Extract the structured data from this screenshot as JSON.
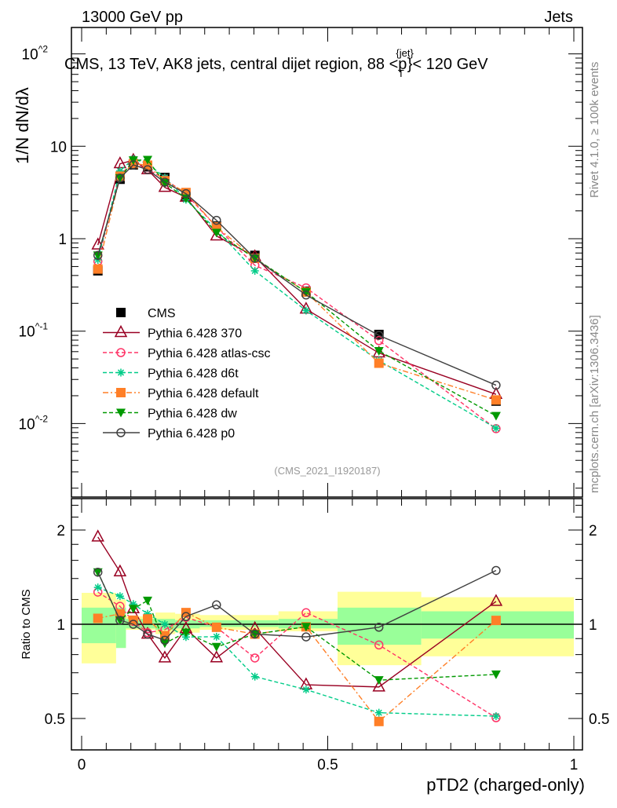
{
  "header": {
    "left": "13000 GeV pp",
    "right": "Jets"
  },
  "side_labels": {
    "rivet": "Rivet 4.1.0, ≥ 100k events",
    "mcplots": "mcplots.cern.ch [arXiv:1306.3436]"
  },
  "chart_data": {
    "type": "line",
    "title": "CMS, 13 TeV, AK8 jets, central dijet region, 88 <p",
    "title_sub": "T",
    "title_sup": "{jet}",
    "title_end": "}< 120 GeV",
    "analysis_id": "(CMS_2021_I1920187)",
    "xlabel": "pTD2 (charged-only)",
    "ylabel": "1/N dN/dλ",
    "ratio_ylabel": "Ratio to CMS",
    "xlim": [
      0,
      1
    ],
    "ylim": [
      0.0016,
      195
    ],
    "yscale": "log",
    "ratio_ylim": [
      0.397,
      2.52
    ],
    "x_ticks": [
      "0",
      "0.5",
      "1"
    ],
    "y_ticks": [
      "10^-2",
      "10^-1",
      "1",
      "10",
      "10^2"
    ],
    "ratio_ticks": [
      "0.5",
      "1",
      "2"
    ],
    "legend_position": "bottom-left",
    "x": [
      0.033,
      0.078,
      0.105,
      0.134,
      0.169,
      0.212,
      0.274,
      0.352,
      0.456,
      0.604,
      0.842
    ],
    "reference": {
      "name": "CMS",
      "values": [
        0.45,
        4.4,
        6.3,
        6.0,
        4.6,
        2.9,
        1.37,
        0.66,
        0.27,
        0.092,
        0.0175
      ]
    },
    "ref_bands": {
      "edges": [
        0,
        0.07,
        0.09,
        0.15,
        0.19,
        0.24,
        0.4,
        0.52,
        0.69,
        1.0
      ],
      "total": [
        [
          0.75,
          1.26
        ],
        [
          0.84,
          1.2
        ],
        [
          0.96,
          1.06
        ],
        [
          0.93,
          1.09
        ],
        [
          0.94,
          1.08
        ],
        [
          0.96,
          1.07
        ],
        [
          0.95,
          1.1
        ],
        [
          0.74,
          1.27
        ],
        [
          0.79,
          1.22
        ]
      ],
      "stat": [
        [
          0.87,
          1.13
        ],
        [
          0.84,
          1.13
        ],
        [
          0.97,
          1.04
        ],
        [
          0.96,
          1.04
        ],
        [
          0.97,
          1.03
        ],
        [
          0.98,
          1.03
        ],
        [
          0.97,
          1.04
        ],
        [
          0.86,
          1.13
        ],
        [
          0.9,
          1.1
        ]
      ],
      "total_color": "#ffff99",
      "stat_color": "#99ff99"
    },
    "series": [
      {
        "name": "Pythia 6.428 370",
        "color": "#990022",
        "dash": "",
        "marker": "triangle-open",
        "values": [
          0.855,
          6.47,
          7.06,
          5.58,
          3.59,
          2.81,
          1.07,
          0.64,
          0.173,
          0.058,
          0.0207
        ]
      },
      {
        "name": "Pythia 6.428 atlas-csc",
        "color": "#ff3366",
        "dash": "5,3",
        "marker": "circle-open",
        "values": [
          0.57,
          5.02,
          6.43,
          5.64,
          4.42,
          3.05,
          1.34,
          0.515,
          0.294,
          0.079,
          0.0088
        ]
      },
      {
        "name": "Pythia 6.428 d6t",
        "color": "#00cc88",
        "dash": "5,3",
        "marker": "star",
        "values": [
          0.59,
          5.41,
          7.31,
          6.48,
          4.6,
          2.64,
          1.25,
          0.449,
          0.167,
          0.048,
          0.0089
        ]
      },
      {
        "name": "Pythia 6.428 default",
        "color": "#ff7f27",
        "dash": "7,3,2,3",
        "marker": "square",
        "values": [
          0.47,
          4.75,
          6.49,
          6.24,
          4.23,
          3.16,
          1.34,
          0.614,
          0.265,
          0.045,
          0.018
        ]
      },
      {
        "name": "Pythia 6.428 dw",
        "color": "#009900",
        "dash": "5,3",
        "marker": "triangle-down",
        "values": [
          0.66,
          4.53,
          7.06,
          7.14,
          4.0,
          2.73,
          1.16,
          0.614,
          0.265,
          0.061,
          0.0121
        ]
      },
      {
        "name": "Pythia 6.428 p0",
        "color": "#404040",
        "dash": "",
        "marker": "circle-open",
        "values": [
          0.66,
          4.53,
          6.3,
          5.58,
          4.09,
          3.07,
          1.58,
          0.614,
          0.246,
          0.09,
          0.026
        ]
      }
    ]
  }
}
